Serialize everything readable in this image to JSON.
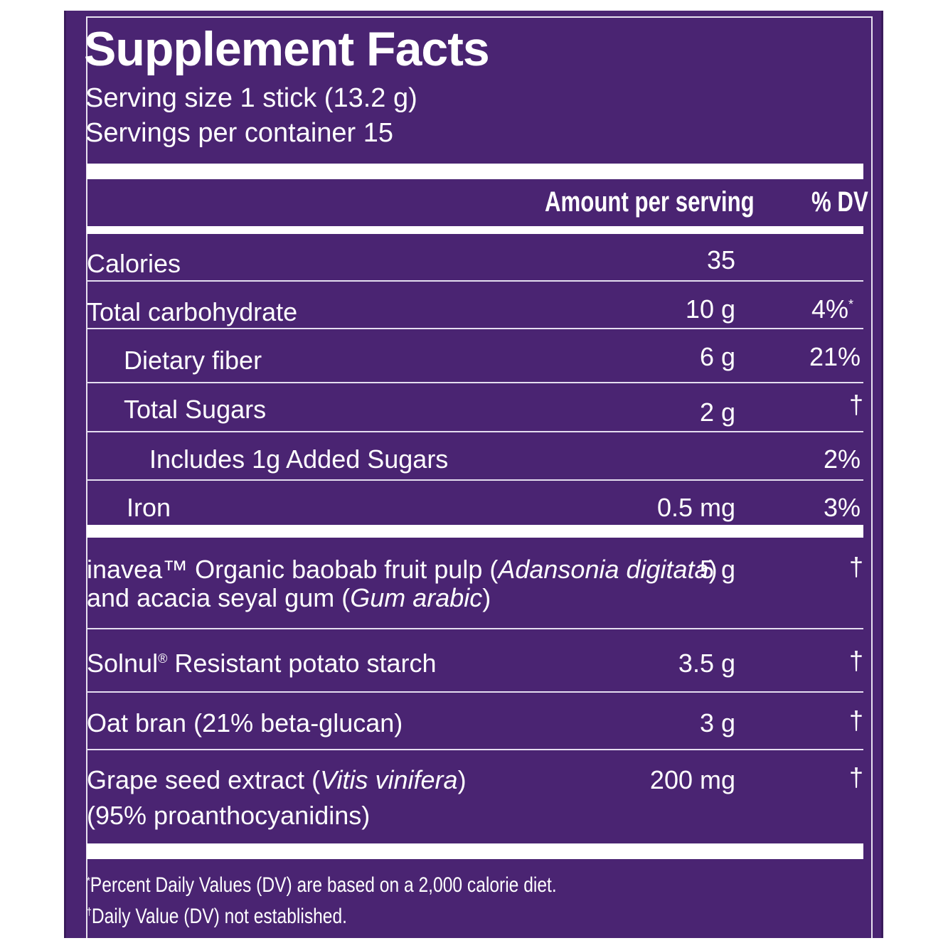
{
  "label": {
    "title": "Supplement Facts",
    "serving_size": "Serving size 1 stick (13.2 g)",
    "servings_per_container": "Servings per container 15",
    "header_amount": "Amount per serving",
    "header_dv": "% DV"
  },
  "nutrients": [
    {
      "name": "Calories",
      "amount": "35",
      "dv": ""
    },
    {
      "name": "Total carbohydrate",
      "amount": "10 g",
      "dv": "4%",
      "dv_mark": "*"
    },
    {
      "name": "Dietary fiber",
      "amount": "6 g",
      "dv": "21%"
    },
    {
      "name": "Total Sugars",
      "amount": "2 g",
      "dv": "†"
    },
    {
      "name": "Includes 1g Added Sugars",
      "amount": "",
      "dv": "2%"
    },
    {
      "name": "Iron",
      "amount": "0.5 mg",
      "dv": "3%"
    }
  ],
  "ingredients": [
    {
      "line1_a": "inavea™ Organic baobab fruit pulp (",
      "line1_i": "Adansonia digitata",
      "line1_b": ")",
      "line2_a": "and acacia seyal gum (",
      "line2_i": "Gum arabic",
      "line2_b": ")",
      "amount": "5 g",
      "dv": "†"
    },
    {
      "name": "Solnul",
      "mark": "®",
      "name_rest": " Resistant potato starch",
      "amount": "3.5 g",
      "dv": "†"
    },
    {
      "name": "Oat bran (21% beta-glucan)",
      "amount": "3 g",
      "dv": "†"
    },
    {
      "line1_a": "Grape seed extract (",
      "line1_i": "Vitis vinifera",
      "line1_b": ")",
      "line2_a": "(95% proanthocyanidins)",
      "amount": "200 mg",
      "dv": "†"
    }
  ],
  "footnotes": {
    "note1_mark": "*",
    "note1": "Percent Daily Values (DV) are based on a 2,000 calorie diet.",
    "note2_mark": "†",
    "note2": "Daily Value (DV) not established."
  }
}
